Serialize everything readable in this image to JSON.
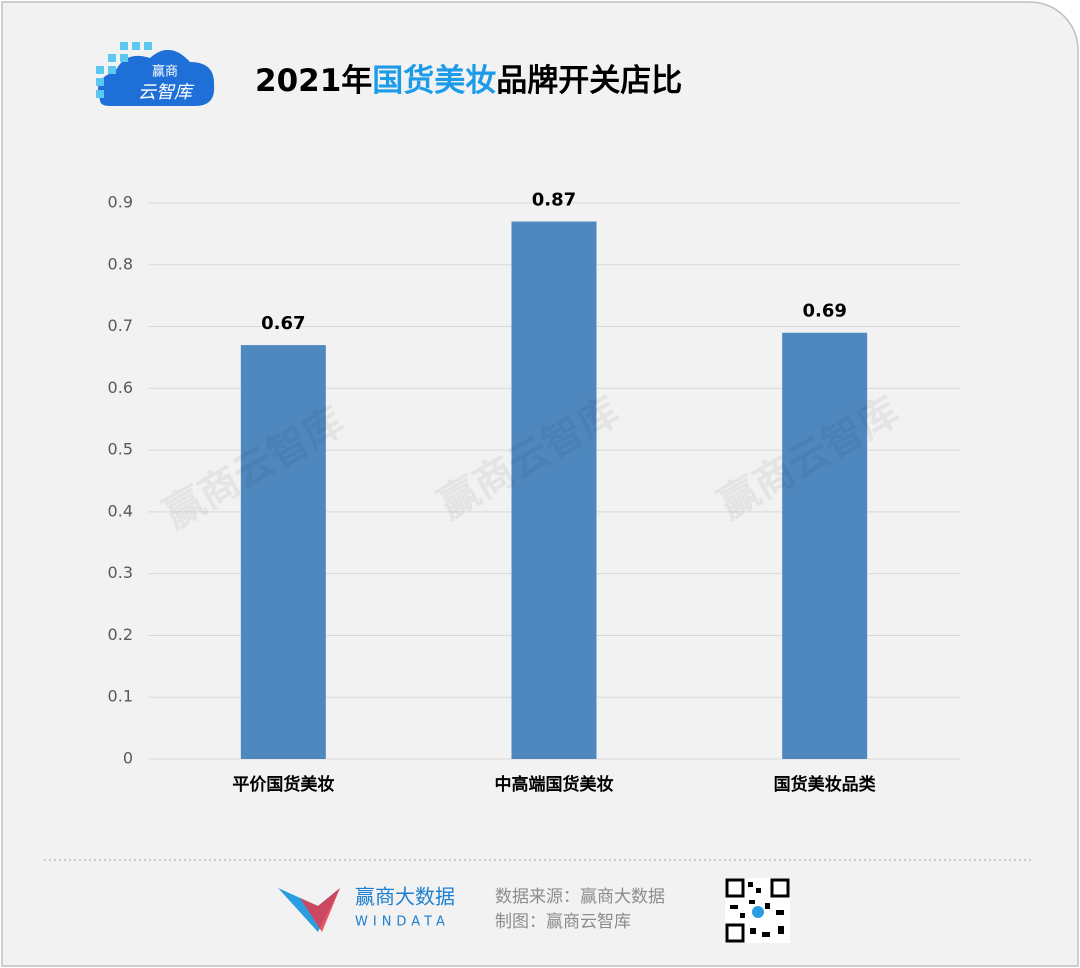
{
  "header": {
    "logo_top": "赢商",
    "logo_bottom": "云智库",
    "title_parts": [
      "2021年",
      "国货美妆",
      "品牌开关店比"
    ]
  },
  "chart_data": {
    "type": "bar",
    "categories": [
      "平价国货美妆",
      "中高端国货美妆",
      "国货美妆品类"
    ],
    "values": [
      0.67,
      0.87,
      0.69
    ],
    "color": "#4f88be",
    "ylim": [
      0,
      0.9
    ],
    "yticks": [
      0,
      0.1,
      0.2,
      0.3,
      0.4,
      0.5,
      0.6,
      0.7,
      0.8,
      0.9
    ],
    "grid": true
  },
  "watermark": "赢商云智库",
  "footer": {
    "brand": "赢商大数据",
    "brand_en": "WINDATA",
    "source": "数据来源：赢商大数据",
    "made_by": "制图：赢商云智库"
  }
}
